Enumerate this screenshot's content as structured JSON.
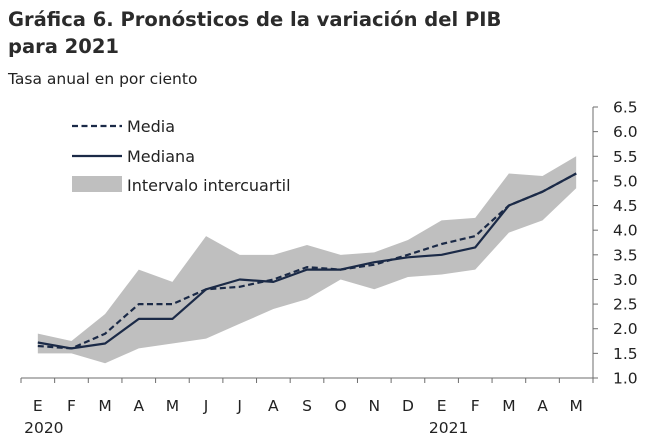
{
  "chart_data": {
    "type": "line",
    "title": "Gráfica 6. Pronósticos de la variación del PIB\npara 2021",
    "subtitle": "Tasa anual en por ciento",
    "categories": [
      "E",
      "F",
      "M",
      "A",
      "M",
      "J",
      "J",
      "A",
      "S",
      "O",
      "N",
      "D",
      "E",
      "F",
      "M",
      "A",
      "M"
    ],
    "year_labels": [
      {
        "index": 0,
        "label": "2020"
      },
      {
        "index": 12,
        "label": "2021"
      }
    ],
    "ylim": [
      1.0,
      6.5
    ],
    "yticks": [
      "6.5",
      "6.0",
      "5.5",
      "5.0",
      "4.5",
      "4.0",
      "3.5",
      "3.0",
      "2.5",
      "2.0",
      "1.5",
      "1.0"
    ],
    "y_axis_side": "right",
    "legend_position": "top-left",
    "series": [
      {
        "name": "Media",
        "style": "dashed",
        "color": "#1b2a47",
        "values": [
          1.65,
          1.6,
          1.9,
          2.5,
          2.5,
          2.8,
          2.85,
          3.0,
          3.25,
          3.2,
          3.3,
          3.5,
          3.72,
          3.88,
          4.5,
          4.78,
          5.15
        ]
      },
      {
        "name": "Mediana",
        "style": "solid",
        "color": "#1b2a47",
        "values": [
          1.72,
          1.6,
          1.7,
          2.2,
          2.2,
          2.8,
          3.0,
          2.95,
          3.2,
          3.2,
          3.35,
          3.45,
          3.5,
          3.65,
          4.5,
          4.78,
          5.15
        ]
      },
      {
        "name": "Intervalo intercuartil",
        "type": "band",
        "color": "#bfbfbf",
        "lower": [
          1.5,
          1.5,
          1.3,
          1.6,
          1.7,
          1.8,
          2.1,
          2.4,
          2.6,
          3.0,
          2.8,
          3.05,
          3.1,
          3.2,
          3.95,
          4.2,
          4.85
        ],
        "upper": [
          1.9,
          1.75,
          2.3,
          3.2,
          2.95,
          3.88,
          3.5,
          3.5,
          3.7,
          3.5,
          3.55,
          3.8,
          4.2,
          4.25,
          5.15,
          5.1,
          5.5
        ]
      }
    ]
  }
}
